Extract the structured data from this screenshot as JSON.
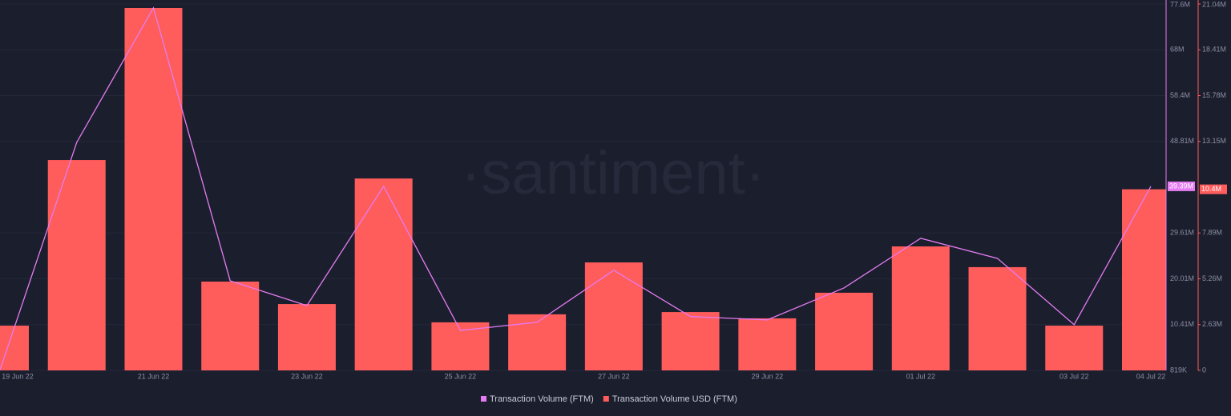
{
  "chart_data": {
    "type": "combo",
    "watermark": "·santiment·",
    "categories": [
      "19 Jun 22",
      null,
      "21 Jun 22",
      null,
      "23 Jun 22",
      null,
      "25 Jun 22",
      null,
      "27 Jun 22",
      null,
      "29 Jun 22",
      null,
      "01 Jul 22",
      null,
      "03 Jul 22",
      "04 Jul 22"
    ],
    "series": [
      {
        "name": "Transaction Volume USD (FTM)",
        "type": "bar",
        "axis": "y2",
        "color": "#ff5c5c",
        "values": [
          2570000,
          12080000,
          20810000,
          5100000,
          3810000,
          11020000,
          2760000,
          3220000,
          6200000,
          3350000,
          2990000,
          4460000,
          7120000,
          5930000,
          2570000,
          10400000
        ],
        "current_label": "10.4M"
      },
      {
        "name": "Transaction Volume (FTM)",
        "type": "line",
        "axis": "y",
        "color": "#e57cf2",
        "values": [
          900000,
          48600000,
          76800000,
          19600000,
          14400000,
          39400000,
          9200000,
          10900000,
          21800000,
          12100000,
          11400000,
          18100000,
          28500000,
          24300000,
          10400000,
          39390000
        ],
        "current_label": "39.39M"
      }
    ],
    "ylim": [
      819000,
      77600000
    ],
    "yticks": [
      {
        "value": 819000,
        "label": "819K"
      },
      {
        "value": 10410000,
        "label": "10.41M"
      },
      {
        "value": 20010000,
        "label": "20.01M"
      },
      {
        "value": 29610000,
        "label": "29.61M"
      },
      {
        "value": 48810000,
        "label": "48.81M"
      },
      {
        "value": 58400000,
        "label": "58.4M"
      },
      {
        "value": 68000000,
        "label": "68M"
      },
      {
        "value": 77600000,
        "label": "77.6M"
      }
    ],
    "y2lim": [
      0,
      21040000
    ],
    "y2ticks": [
      0,
      {
        "value": 2630000,
        "label": "2.63M"
      },
      {
        "value": 5260000,
        "label": "5.26M"
      },
      {
        "value": 7890000,
        "label": "7.89M"
      },
      {
        "value": 13150000,
        "label": "13.15M"
      },
      {
        "value": 15780000,
        "label": "15.78M"
      },
      {
        "value": 18410000,
        "label": "18.41M"
      },
      {
        "value": 21040000,
        "label": "21.04M"
      }
    ],
    "grid": true
  }
}
